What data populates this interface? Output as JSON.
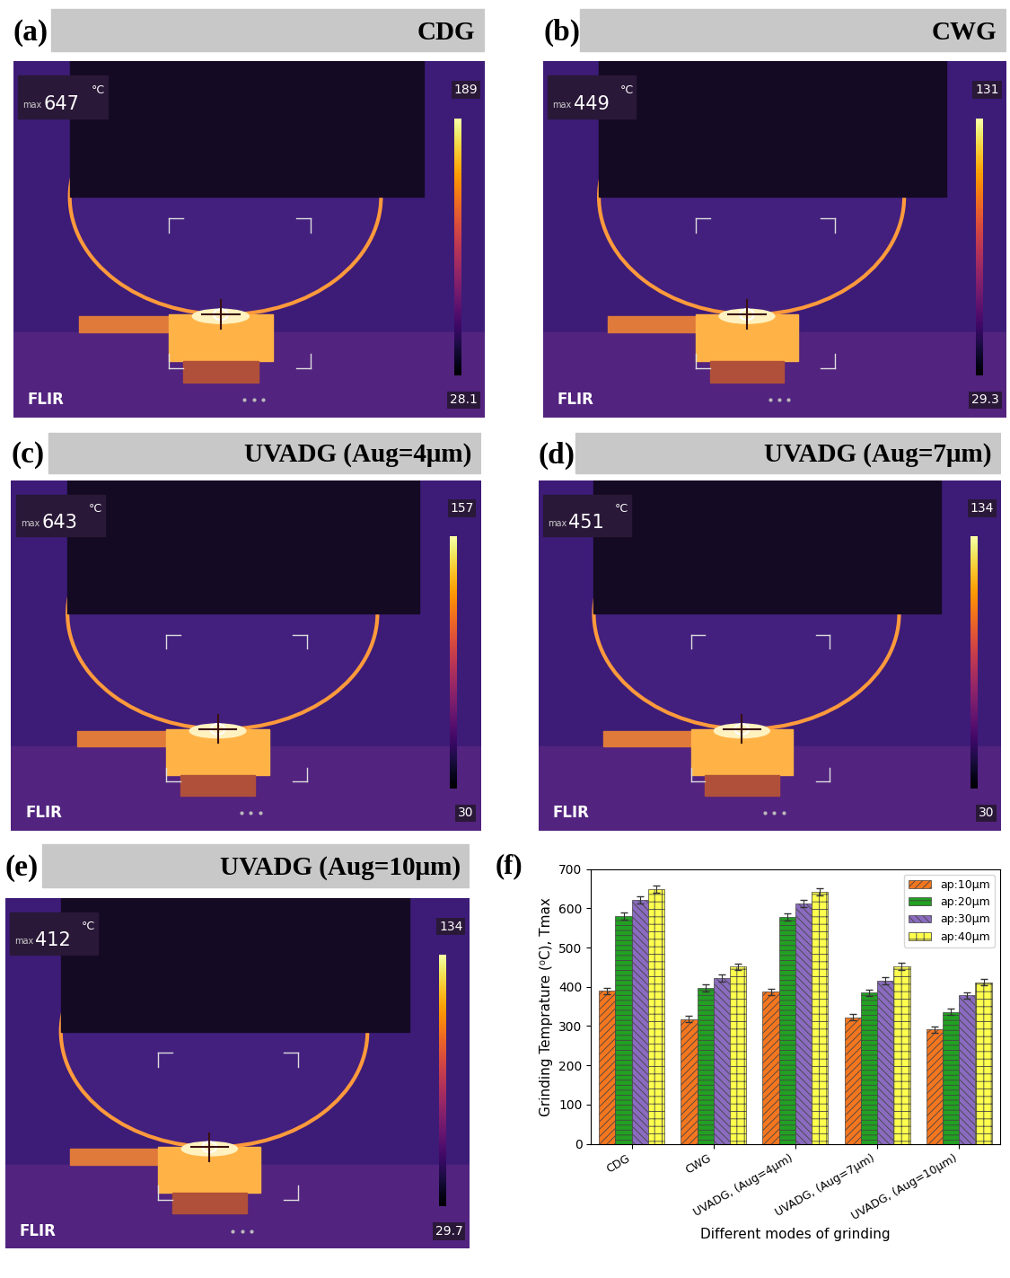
{
  "panels": [
    {
      "label": "(a)",
      "title": "CDG",
      "max_prefix": "max",
      "max_value": 647,
      "unit": "°C",
      "scale_max": 189,
      "scale_min": 28.1,
      "brand": "FLIR"
    },
    {
      "label": "(b)",
      "title": "CWG",
      "max_prefix": "max",
      "max_value": 449,
      "unit": "°C",
      "scale_max": 131,
      "scale_min": 29.3,
      "brand": "FLIR"
    },
    {
      "label": "(c)",
      "title": "UVADG (Aug=4μm)",
      "max_prefix": "max",
      "max_value": 643,
      "unit": "°C",
      "scale_max": 157,
      "scale_min": 30,
      "brand": "FLIR"
    },
    {
      "label": "(d)",
      "title": "UVADG (Aug=7μm)",
      "max_prefix": "max",
      "max_value": 451,
      "unit": "°C",
      "scale_max": 134,
      "scale_min": 30,
      "brand": "FLIR"
    },
    {
      "label": "(e)",
      "title": "UVADG (Aug=10μm)",
      "max_prefix": "max",
      "max_value": 412,
      "unit": "°C",
      "scale_max": 134,
      "scale_min": 29.7,
      "brand": "FLIR"
    }
  ],
  "chart_data": {
    "type": "bar",
    "panel_label": "(f)",
    "x_label": "Different modes of grinding",
    "y_label": "Grinding Temprature (⁰C), Tmax",
    "categories": [
      "CDG",
      "CWG",
      "UVADG, (Aug=4μm)",
      "UVADG, (Aug=7μm)",
      "UVADG, (Aug=10μm)"
    ],
    "series": [
      {
        "name": "ap:10μm",
        "color": "#f4761f",
        "values": [
          390,
          318,
          387,
          322,
          291
        ],
        "errors": [
          8,
          8,
          9,
          8,
          8
        ]
      },
      {
        "name": "ap:20μm",
        "color": "#22a022",
        "values": [
          580,
          398,
          578,
          385,
          336
        ],
        "errors": [
          9,
          9,
          9,
          8,
          8
        ]
      },
      {
        "name": "ap:30μm",
        "color": "#8a6bbf",
        "values": [
          622,
          422,
          612,
          416,
          378
        ],
        "errors": [
          9,
          9,
          9,
          9,
          8
        ]
      },
      {
        "name": "ap:40μm",
        "color": "#ffff4d",
        "values": [
          648,
          451,
          641,
          453,
          412
        ],
        "errors": [
          9,
          9,
          9,
          9,
          9
        ]
      }
    ],
    "ylim": [
      0,
      700
    ],
    "yticks": [
      0,
      100,
      200,
      300,
      400,
      500,
      600,
      700
    ],
    "legend": "upper right",
    "grid": false
  }
}
